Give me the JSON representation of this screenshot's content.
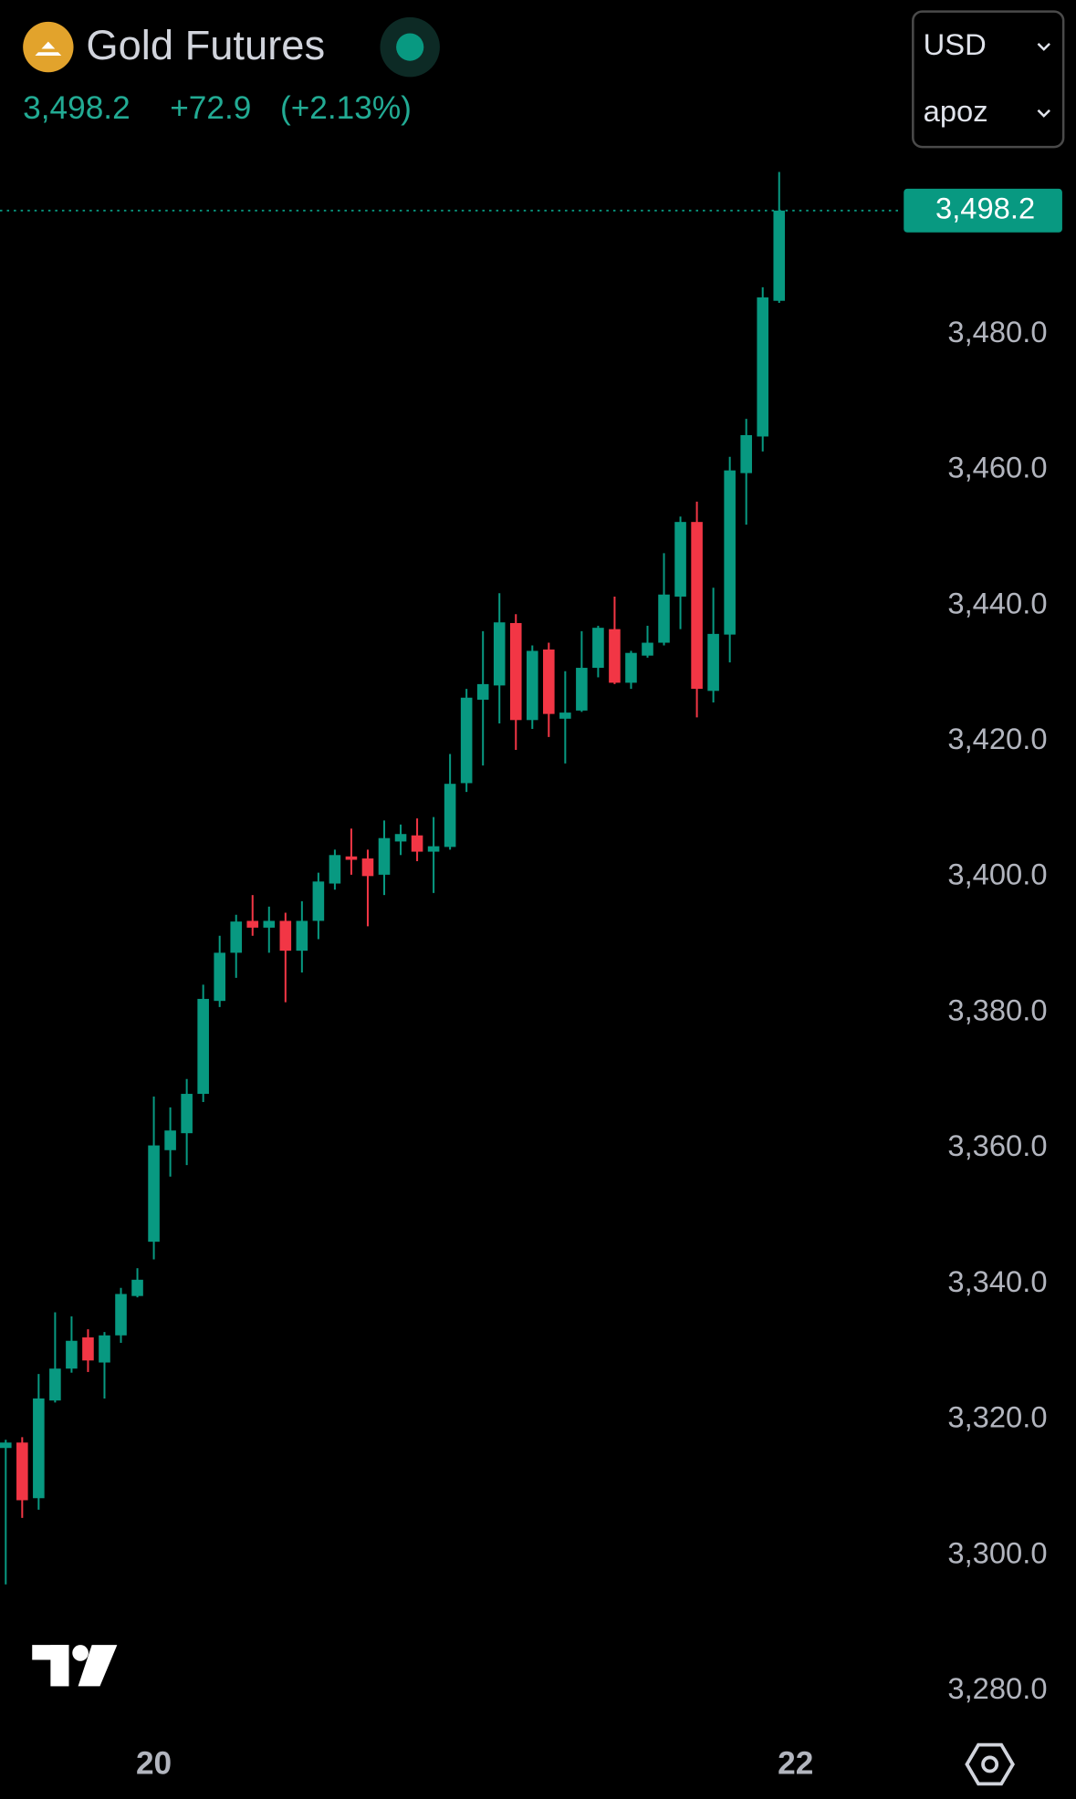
{
  "header": {
    "symbol": "Gold Futures",
    "price": "3,498.2",
    "change": "+72.9",
    "change_pct": "(+2.13%)",
    "currency": "USD",
    "unit": "apoz"
  },
  "chart_data": {
    "type": "candlestick",
    "up_color": "#089981",
    "down_color": "#f23645",
    "open": [
      3315.8,
      3316.6,
      3308.4,
      3322.8,
      3327.5,
      3332.1,
      3328.4,
      3332.4,
      3338.2,
      3346.2,
      3359.7,
      3362.2,
      3368.0,
      3381.7,
      3388.8,
      3393.5,
      3392.5,
      3393.5,
      3389.1,
      3393.5,
      3399.0,
      3403.0,
      3402.7,
      3400.3,
      3405.2,
      3406.1,
      3403.7,
      3404.4,
      3413.8,
      3426.1,
      3428.2,
      3437.4,
      3423.1,
      3433.5,
      3423.3,
      3424.5,
      3430.8,
      3436.5,
      3428.6,
      3432.6,
      3434.5,
      3441.3,
      3452.3,
      3427.4,
      3435.7,
      3459.5,
      3464.9,
      3484.9
    ],
    "high": [
      3317.0,
      3317.4,
      3326.7,
      3335.8,
      3335.2,
      3333.3,
      3332.9,
      3339.4,
      3342.3,
      3367.6,
      3366.0,
      3370.2,
      3384.1,
      3391.3,
      3394.4,
      3397.3,
      3395.6,
      3394.7,
      3396.4,
      3400.6,
      3404.0,
      3407.1,
      3404.0,
      3408.3,
      3407.7,
      3408.6,
      3408.8,
      3418.1,
      3427.7,
      3436.2,
      3441.8,
      3438.7,
      3434.1,
      3434.5,
      3430.3,
      3436.2,
      3437.0,
      3441.3,
      3433.3,
      3437.0,
      3447.7,
      3453.1,
      3455.3,
      3442.6,
      3461.9,
      3467.5,
      3486.9,
      3503.9
    ],
    "low": [
      3295.7,
      3305.5,
      3306.7,
      3322.5,
      3326.9,
      3327.0,
      3323.1,
      3331.3,
      3338.0,
      3343.6,
      3355.8,
      3357.5,
      3366.8,
      3380.8,
      3385.1,
      3391.3,
      3388.8,
      3381.5,
      3385.9,
      3390.8,
      3398.1,
      3400.3,
      3392.7,
      3397.3,
      3403.2,
      3402.3,
      3397.6,
      3404.0,
      3412.5,
      3416.4,
      3422.6,
      3418.7,
      3421.8,
      3420.6,
      3416.7,
      3424.3,
      3429.4,
      3428.4,
      3427.7,
      3432.3,
      3434.1,
      3436.5,
      3423.5,
      3425.7,
      3431.6,
      3451.9,
      3462.7,
      3484.6
    ],
    "close": [
      3316.6,
      3308.1,
      3323.1,
      3327.5,
      3331.6,
      3328.7,
      3332.4,
      3338.5,
      3340.6,
      3360.4,
      3362.6,
      3368.0,
      3382.0,
      3388.8,
      3393.4,
      3392.5,
      3393.5,
      3389.1,
      3393.5,
      3399.3,
      3403.2,
      3402.5,
      3400.1,
      3405.7,
      3406.3,
      3403.7,
      3404.5,
      3413.7,
      3426.4,
      3428.4,
      3437.5,
      3423.1,
      3433.3,
      3424.0,
      3424.2,
      3430.8,
      3436.7,
      3428.6,
      3433.0,
      3434.5,
      3441.6,
      3452.3,
      3427.7,
      3435.8,
      3459.9,
      3465.1,
      3485.4,
      3498.2
    ],
    "xticks": [
      {
        "value": 9,
        "label": "20"
      },
      {
        "value": 48,
        "label": "22"
      }
    ],
    "ylim": [
      3275,
      3505
    ],
    "yticks": [
      {
        "value": 3280,
        "label": "3,280.0"
      },
      {
        "value": 3300,
        "label": "3,300.0"
      },
      {
        "value": 3320,
        "label": "3,320.0"
      },
      {
        "value": 3340,
        "label": "3,340.0"
      },
      {
        "value": 3360,
        "label": "3,360.0"
      },
      {
        "value": 3380,
        "label": "3,380.0"
      },
      {
        "value": 3400,
        "label": "3,400.0"
      },
      {
        "value": 3420,
        "label": "3,420.0"
      },
      {
        "value": 3440,
        "label": "3,440.0"
      },
      {
        "value": 3460,
        "label": "3,460.0"
      },
      {
        "value": 3480,
        "label": "3,480.0"
      }
    ],
    "last_price": {
      "value": 3498.2,
      "label": "3,498.2"
    }
  }
}
